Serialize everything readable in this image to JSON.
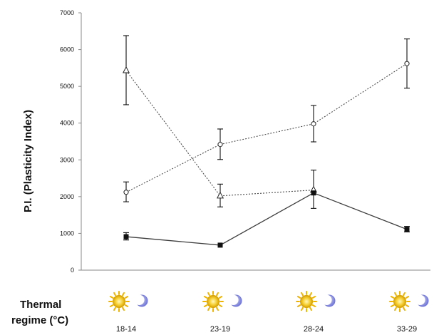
{
  "chart_data": {
    "type": "line",
    "ylabel": "P.I. (Plasticity Index)",
    "ylim": [
      0,
      7000
    ],
    "yticks": [
      0,
      1000,
      2000,
      3000,
      4000,
      5000,
      6000,
      7000
    ],
    "categories": [
      "18-14",
      "23-19",
      "28-24",
      "33-29"
    ],
    "thermal_label_line1": "Thermal",
    "thermal_label_line2": "regime (°C)",
    "day_night_icons": [
      "sun-icon",
      "moon-icon"
    ],
    "grid": false,
    "series": [
      {
        "marker": "triangle",
        "line_style": "dotted",
        "values": [
          5430,
          2020,
          2180,
          null
        ],
        "error": [
          [
            4500,
            6380
          ],
          [
            1720,
            2340
          ],
          [
            null,
            null
          ],
          [
            null,
            null
          ]
        ]
      },
      {
        "marker": "circle",
        "line_style": "dotted",
        "values": [
          2120,
          3420,
          3980,
          5620
        ],
        "error": [
          [
            1860,
            2400
          ],
          [
            3010,
            3840
          ],
          [
            3490,
            4480
          ],
          [
            4950,
            6290
          ]
        ]
      },
      {
        "marker": "square",
        "line_style": "solid",
        "values": [
          910,
          680,
          2100,
          1110
        ],
        "error": [
          [
            820,
            1020
          ],
          [
            null,
            null
          ],
          [
            1680,
            2720
          ],
          [
            1040,
            1190
          ]
        ]
      }
    ]
  }
}
